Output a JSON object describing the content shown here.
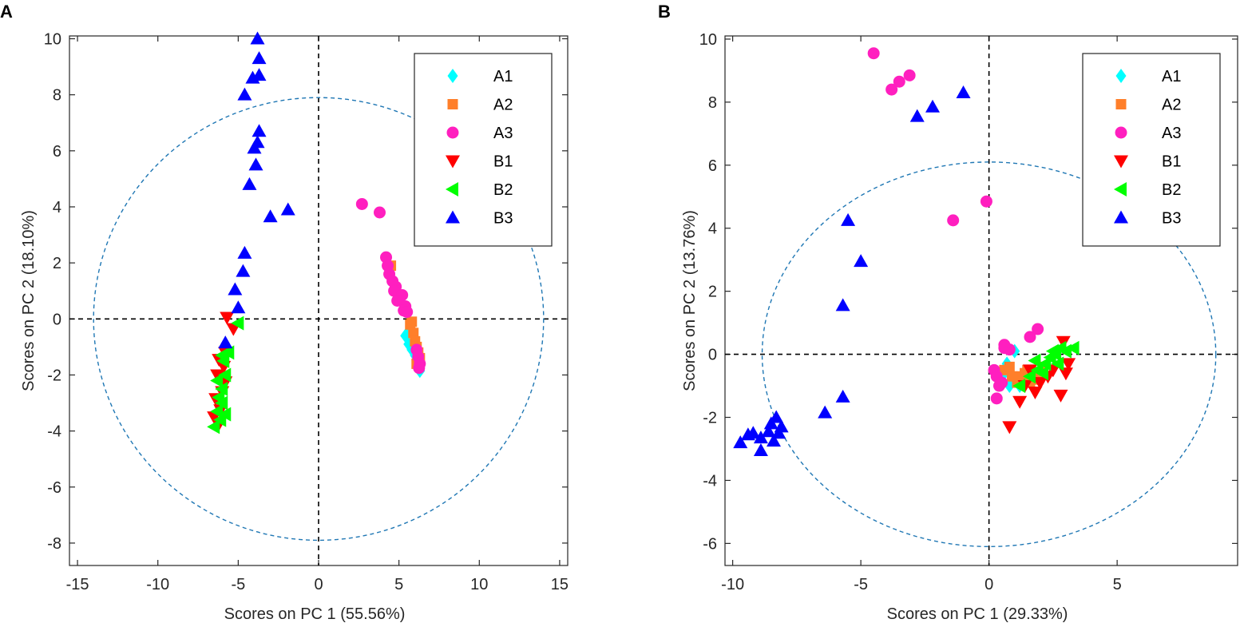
{
  "chart_data": [
    {
      "panel": "A",
      "type": "scatter",
      "xlabel": "Scores on PC 1 (55.56%)",
      "ylabel": "Scores on PC 2 (18.10%)",
      "xlim": [
        -15.5,
        15.5
      ],
      "ylim": [
        -8.8,
        10.1
      ],
      "xticks": [
        -15,
        -10,
        -5,
        0,
        5,
        10,
        15
      ],
      "yticks": [
        -8,
        -6,
        -4,
        -2,
        0,
        2,
        4,
        6,
        8,
        10
      ],
      "ellipse": {
        "rx": 14.0,
        "ry": 7.9
      },
      "legend": [
        "A1",
        "A2",
        "A3",
        "B1",
        "B2",
        "B3"
      ],
      "series": [
        {
          "name": "A1",
          "marker": "diamond",
          "color": "#00ffff",
          "points": [
            [
              5.4,
              -0.6
            ],
            [
              5.6,
              -0.9
            ],
            [
              5.8,
              -1.1
            ],
            [
              6.0,
              -1.3
            ],
            [
              6.1,
              -1.5
            ],
            [
              6.2,
              -1.7
            ],
            [
              6.3,
              -1.85
            ],
            [
              5.5,
              0.35
            ],
            [
              5.7,
              -0.4
            ]
          ]
        },
        {
          "name": "A2",
          "marker": "square",
          "color": "#ff7f2a",
          "points": [
            [
              5.7,
              -0.2
            ],
            [
              5.9,
              -0.5
            ],
            [
              6.0,
              -0.8
            ],
            [
              6.1,
              -1.0
            ],
            [
              6.2,
              -1.2
            ],
            [
              6.3,
              -1.4
            ],
            [
              5.8,
              -0.1
            ],
            [
              4.5,
              1.9
            ],
            [
              6.1,
              -1.6
            ]
          ]
        },
        {
          "name": "A3",
          "marker": "circle",
          "color": "#ff1fbf",
          "points": [
            [
              2.7,
              4.1
            ],
            [
              3.8,
              3.8
            ],
            [
              4.2,
              2.2
            ],
            [
              4.3,
              1.9
            ],
            [
              4.4,
              1.6
            ],
            [
              4.6,
              1.35
            ],
            [
              4.8,
              1.15
            ],
            [
              4.7,
              1.0
            ],
            [
              5.2,
              0.85
            ],
            [
              4.9,
              0.65
            ],
            [
              5.4,
              0.45
            ],
            [
              5.3,
              0.3
            ],
            [
              5.5,
              0.25
            ],
            [
              6.1,
              -1.1
            ],
            [
              6.2,
              -1.35
            ],
            [
              6.3,
              -1.6
            ],
            [
              6.25,
              -1.75
            ]
          ]
        },
        {
          "name": "B1",
          "marker": "triangle-down",
          "color": "#ff0000",
          "points": [
            [
              -5.7,
              0.05
            ],
            [
              -5.3,
              -0.35
            ],
            [
              -5.8,
              -1.2
            ],
            [
              -6.2,
              -1.45
            ],
            [
              -5.9,
              -1.7
            ],
            [
              -6.3,
              -2.0
            ],
            [
              -5.8,
              -2.25
            ],
            [
              -6.0,
              -2.6
            ],
            [
              -6.4,
              -2.85
            ],
            [
              -6.1,
              -3.25
            ],
            [
              -6.5,
              -3.5
            ],
            [
              -6.2,
              -3.75
            ]
          ]
        },
        {
          "name": "B2",
          "marker": "triangle-left",
          "color": "#00ff00",
          "points": [
            [
              -5.0,
              -0.15
            ],
            [
              -5.6,
              -1.2
            ],
            [
              -6.0,
              -1.3
            ],
            [
              -5.9,
              -1.5
            ],
            [
              -5.8,
              -2.0
            ],
            [
              -6.3,
              -2.2
            ],
            [
              -6.0,
              -2.5
            ],
            [
              -6.2,
              -2.8
            ],
            [
              -6.0,
              -3.0
            ],
            [
              -6.3,
              -3.3
            ],
            [
              -5.8,
              -3.4
            ],
            [
              -6.1,
              -3.6
            ],
            [
              -6.5,
              -3.85
            ]
          ]
        },
        {
          "name": "B3",
          "marker": "triangle-up",
          "color": "#0000ff",
          "points": [
            [
              -3.8,
              10.0
            ],
            [
              -3.7,
              9.3
            ],
            [
              -3.7,
              8.7
            ],
            [
              -4.1,
              8.6
            ],
            [
              -4.6,
              8.0
            ],
            [
              -3.7,
              6.7
            ],
            [
              -3.8,
              6.3
            ],
            [
              -4.0,
              6.1
            ],
            [
              -3.9,
              5.5
            ],
            [
              -4.3,
              4.8
            ],
            [
              -1.9,
              3.9
            ],
            [
              -3.0,
              3.65
            ],
            [
              -4.6,
              2.35
            ],
            [
              -4.7,
              1.7
            ],
            [
              -5.2,
              1.05
            ],
            [
              -5.0,
              0.4
            ],
            [
              -5.8,
              -0.85
            ]
          ]
        }
      ]
    },
    {
      "panel": "B",
      "type": "scatter",
      "xlabel": "Scores on PC 1 (29.33%)",
      "ylabel": "Scores on PC 2 (13.76%)",
      "xlim": [
        -10.3,
        9.7
      ],
      "ylim": [
        -6.7,
        10.1
      ],
      "xticks": [
        -10,
        -5,
        0,
        5
      ],
      "yticks": [
        -6,
        -4,
        -2,
        0,
        2,
        4,
        6,
        8,
        10
      ],
      "ellipse": {
        "rx": 8.85,
        "ry": 6.1
      },
      "legend": [
        "A1",
        "A2",
        "A3",
        "B1",
        "B2",
        "B3"
      ],
      "series": [
        {
          "name": "A1",
          "marker": "diamond",
          "color": "#00ffff",
          "points": [
            [
              0.6,
              -0.6
            ],
            [
              0.9,
              -0.8
            ],
            [
              1.0,
              0.1
            ],
            [
              1.2,
              -1.0
            ],
            [
              0.7,
              -0.3
            ],
            [
              0.8,
              -1.0
            ]
          ]
        },
        {
          "name": "A2",
          "marker": "square",
          "color": "#ff7f2a",
          "points": [
            [
              0.6,
              -0.5
            ],
            [
              0.9,
              -0.7
            ],
            [
              1.1,
              -0.9
            ],
            [
              1.3,
              -0.7
            ],
            [
              1.5,
              -0.5
            ],
            [
              1.7,
              -0.8
            ],
            [
              1.9,
              -0.6
            ],
            [
              2.1,
              -0.4
            ],
            [
              1.6,
              -0.9
            ],
            [
              1.4,
              -0.6
            ],
            [
              0.8,
              -0.4
            ]
          ]
        },
        {
          "name": "A3",
          "marker": "circle",
          "color": "#ff1fbf",
          "points": [
            [
              -4.5,
              9.55
            ],
            [
              -3.8,
              8.4
            ],
            [
              -3.5,
              8.65
            ],
            [
              -3.1,
              8.85
            ],
            [
              -0.1,
              4.85
            ],
            [
              -1.4,
              4.25
            ],
            [
              0.6,
              0.2
            ],
            [
              0.8,
              0.15
            ],
            [
              0.6,
              0.3
            ],
            [
              1.6,
              0.55
            ],
            [
              1.9,
              0.8
            ],
            [
              0.2,
              -0.5
            ],
            [
              0.3,
              -0.7
            ],
            [
              0.4,
              -1.0
            ],
            [
              0.5,
              -0.9
            ],
            [
              0.3,
              -1.4
            ]
          ]
        },
        {
          "name": "B1",
          "marker": "triangle-down",
          "color": "#ff0000",
          "points": [
            [
              0.8,
              -2.3
            ],
            [
              1.2,
              -1.5
            ],
            [
              1.4,
              -1.0
            ],
            [
              1.8,
              -1.2
            ],
            [
              2.0,
              -0.9
            ],
            [
              2.3,
              -0.7
            ],
            [
              2.5,
              -0.5
            ],
            [
              2.8,
              -1.3
            ],
            [
              3.0,
              -0.6
            ],
            [
              3.1,
              -0.3
            ],
            [
              2.9,
              0.4
            ],
            [
              1.6,
              -0.5
            ]
          ]
        },
        {
          "name": "B2",
          "marker": "triangle-left",
          "color": "#00ff00",
          "points": [
            [
              1.2,
              -1.0
            ],
            [
              1.6,
              -0.7
            ],
            [
              1.9,
              -0.5
            ],
            [
              2.2,
              -0.3
            ],
            [
              2.4,
              -0.1
            ],
            [
              2.6,
              0.0
            ],
            [
              2.8,
              0.2
            ],
            [
              3.0,
              0.1
            ],
            [
              3.3,
              0.2
            ],
            [
              2.7,
              -0.3
            ],
            [
              2.5,
              0.1
            ],
            [
              2.1,
              -0.6
            ],
            [
              1.8,
              -0.2
            ]
          ]
        },
        {
          "name": "B3",
          "marker": "triangle-up",
          "color": "#0000ff",
          "points": [
            [
              -1.0,
              8.3
            ],
            [
              -2.2,
              7.85
            ],
            [
              -2.8,
              7.55
            ],
            [
              -5.5,
              4.25
            ],
            [
              -5.0,
              2.95
            ],
            [
              -5.7,
              1.55
            ],
            [
              -5.7,
              -1.35
            ],
            [
              -6.4,
              -1.85
            ],
            [
              -8.3,
              -2.0
            ],
            [
              -8.1,
              -2.3
            ],
            [
              -8.5,
              -2.2
            ],
            [
              -8.2,
              -2.5
            ],
            [
              -8.6,
              -2.45
            ],
            [
              -8.9,
              -2.65
            ],
            [
              -9.2,
              -2.5
            ],
            [
              -9.4,
              -2.55
            ],
            [
              -9.7,
              -2.8
            ],
            [
              -8.4,
              -2.75
            ],
            [
              -8.9,
              -3.05
            ]
          ]
        }
      ]
    }
  ]
}
